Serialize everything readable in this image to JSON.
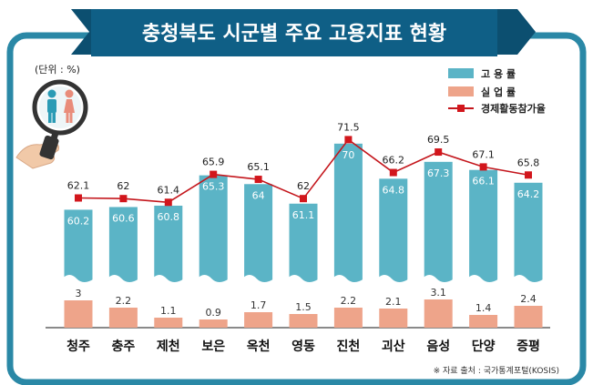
{
  "title": "충청북도 시군별 주요 고용지표 현황",
  "unit_label": "(단위 : %)",
  "source_note": "※ 자료 출처 : 국가통계포털(KOSIS)",
  "colors": {
    "frame": "#2a88a6",
    "title_bg": "#0f5f86",
    "employment_bar": "#5bb4c6",
    "unemployment_bar": "#eea48a",
    "lfp_line": "#c4161c",
    "lfp_marker": "#d2161c"
  },
  "icons": [
    "magnifier-icon",
    "people-icon"
  ],
  "chart_data": {
    "type": "bar",
    "categories": [
      "청주",
      "충주",
      "제천",
      "보은",
      "옥천",
      "영동",
      "진천",
      "괴산",
      "음성",
      "단양",
      "증평"
    ],
    "series": [
      {
        "name": "고 용 률",
        "type": "bar",
        "values": [
          60.2,
          60.6,
          60.8,
          65.3,
          64.0,
          61.1,
          70.0,
          64.8,
          67.3,
          66.1,
          64.2
        ]
      },
      {
        "name": "실 업 률",
        "type": "bar",
        "values": [
          3.0,
          2.2,
          1.1,
          0.9,
          1.7,
          1.5,
          2.2,
          2.1,
          3.1,
          1.4,
          2.4
        ]
      },
      {
        "name": "경제활동참가율",
        "type": "line",
        "values": [
          62.1,
          62.0,
          61.4,
          65.9,
          65.1,
          62.0,
          71.5,
          66.2,
          69.5,
          67.1,
          65.8
        ]
      }
    ],
    "axis_break": true,
    "grid": false,
    "legend_position": "top-right"
  }
}
